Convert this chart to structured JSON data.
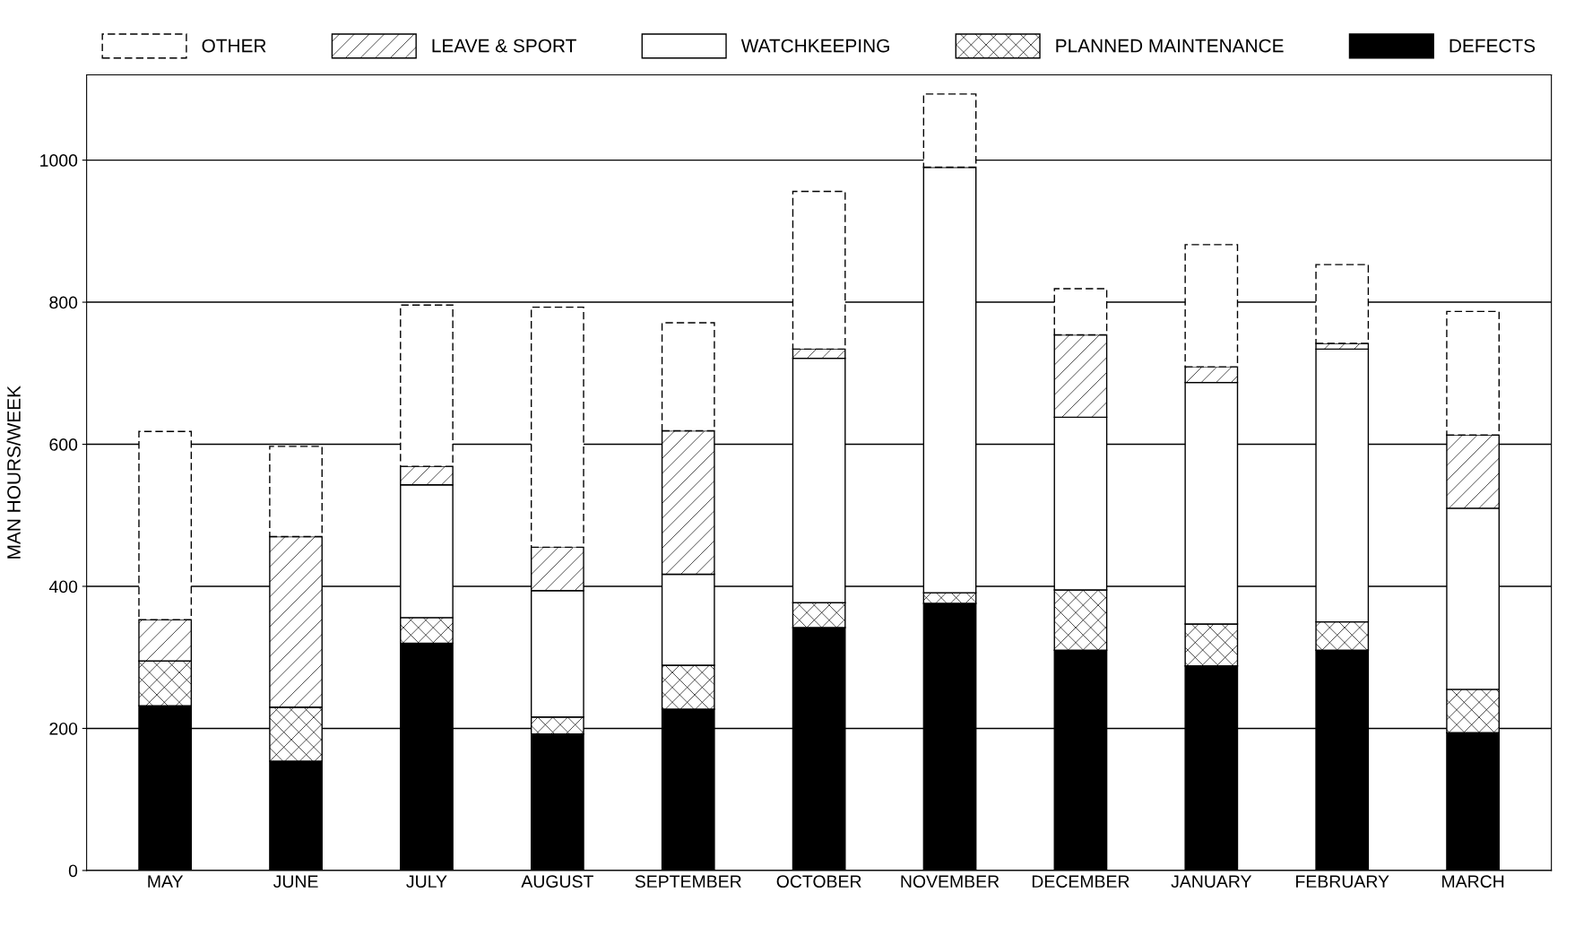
{
  "chart_data": {
    "type": "bar",
    "stacked": true,
    "ylabel": "MAN HOURS/WEEK",
    "categories": [
      "MAY",
      "JUNE",
      "JULY",
      "AUGUST",
      "SEPTEMBER",
      "OCTOBER",
      "NOVEMBER",
      "DECEMBER",
      "JANUARY",
      "FEBRUARY",
      "MARCH"
    ],
    "series": [
      {
        "name": "DEFECTS",
        "color": "#000000",
        "values": [
          232,
          154,
          320,
          192,
          227,
          342,
          376,
          310,
          288,
          310,
          194
        ]
      },
      {
        "name": "PLANNED MAINTENANCE",
        "color": "#000000",
        "values": [
          63,
          76,
          36,
          24,
          62,
          35,
          15,
          85,
          59,
          40,
          61
        ]
      },
      {
        "name": "WATCHKEEPING",
        "color": "#ffffff",
        "values": [
          0,
          0,
          187,
          178,
          128,
          344,
          599,
          243,
          340,
          384,
          255
        ]
      },
      {
        "name": "LEAVE & SPORT",
        "color": "#000000",
        "values": [
          58,
          240,
          26,
          61,
          202,
          13,
          0,
          116,
          22,
          8,
          103
        ]
      },
      {
        "name": "OTHER",
        "color": "#ffffff",
        "line_style": "dashed",
        "values": [
          265,
          127,
          227,
          338,
          152,
          222,
          103,
          65,
          172,
          111,
          174
        ]
      }
    ],
    "ylim": [
      0,
      1120
    ],
    "yticks": [
      0,
      200,
      400,
      600,
      800,
      1000
    ],
    "grid": "y",
    "legend": "top"
  }
}
